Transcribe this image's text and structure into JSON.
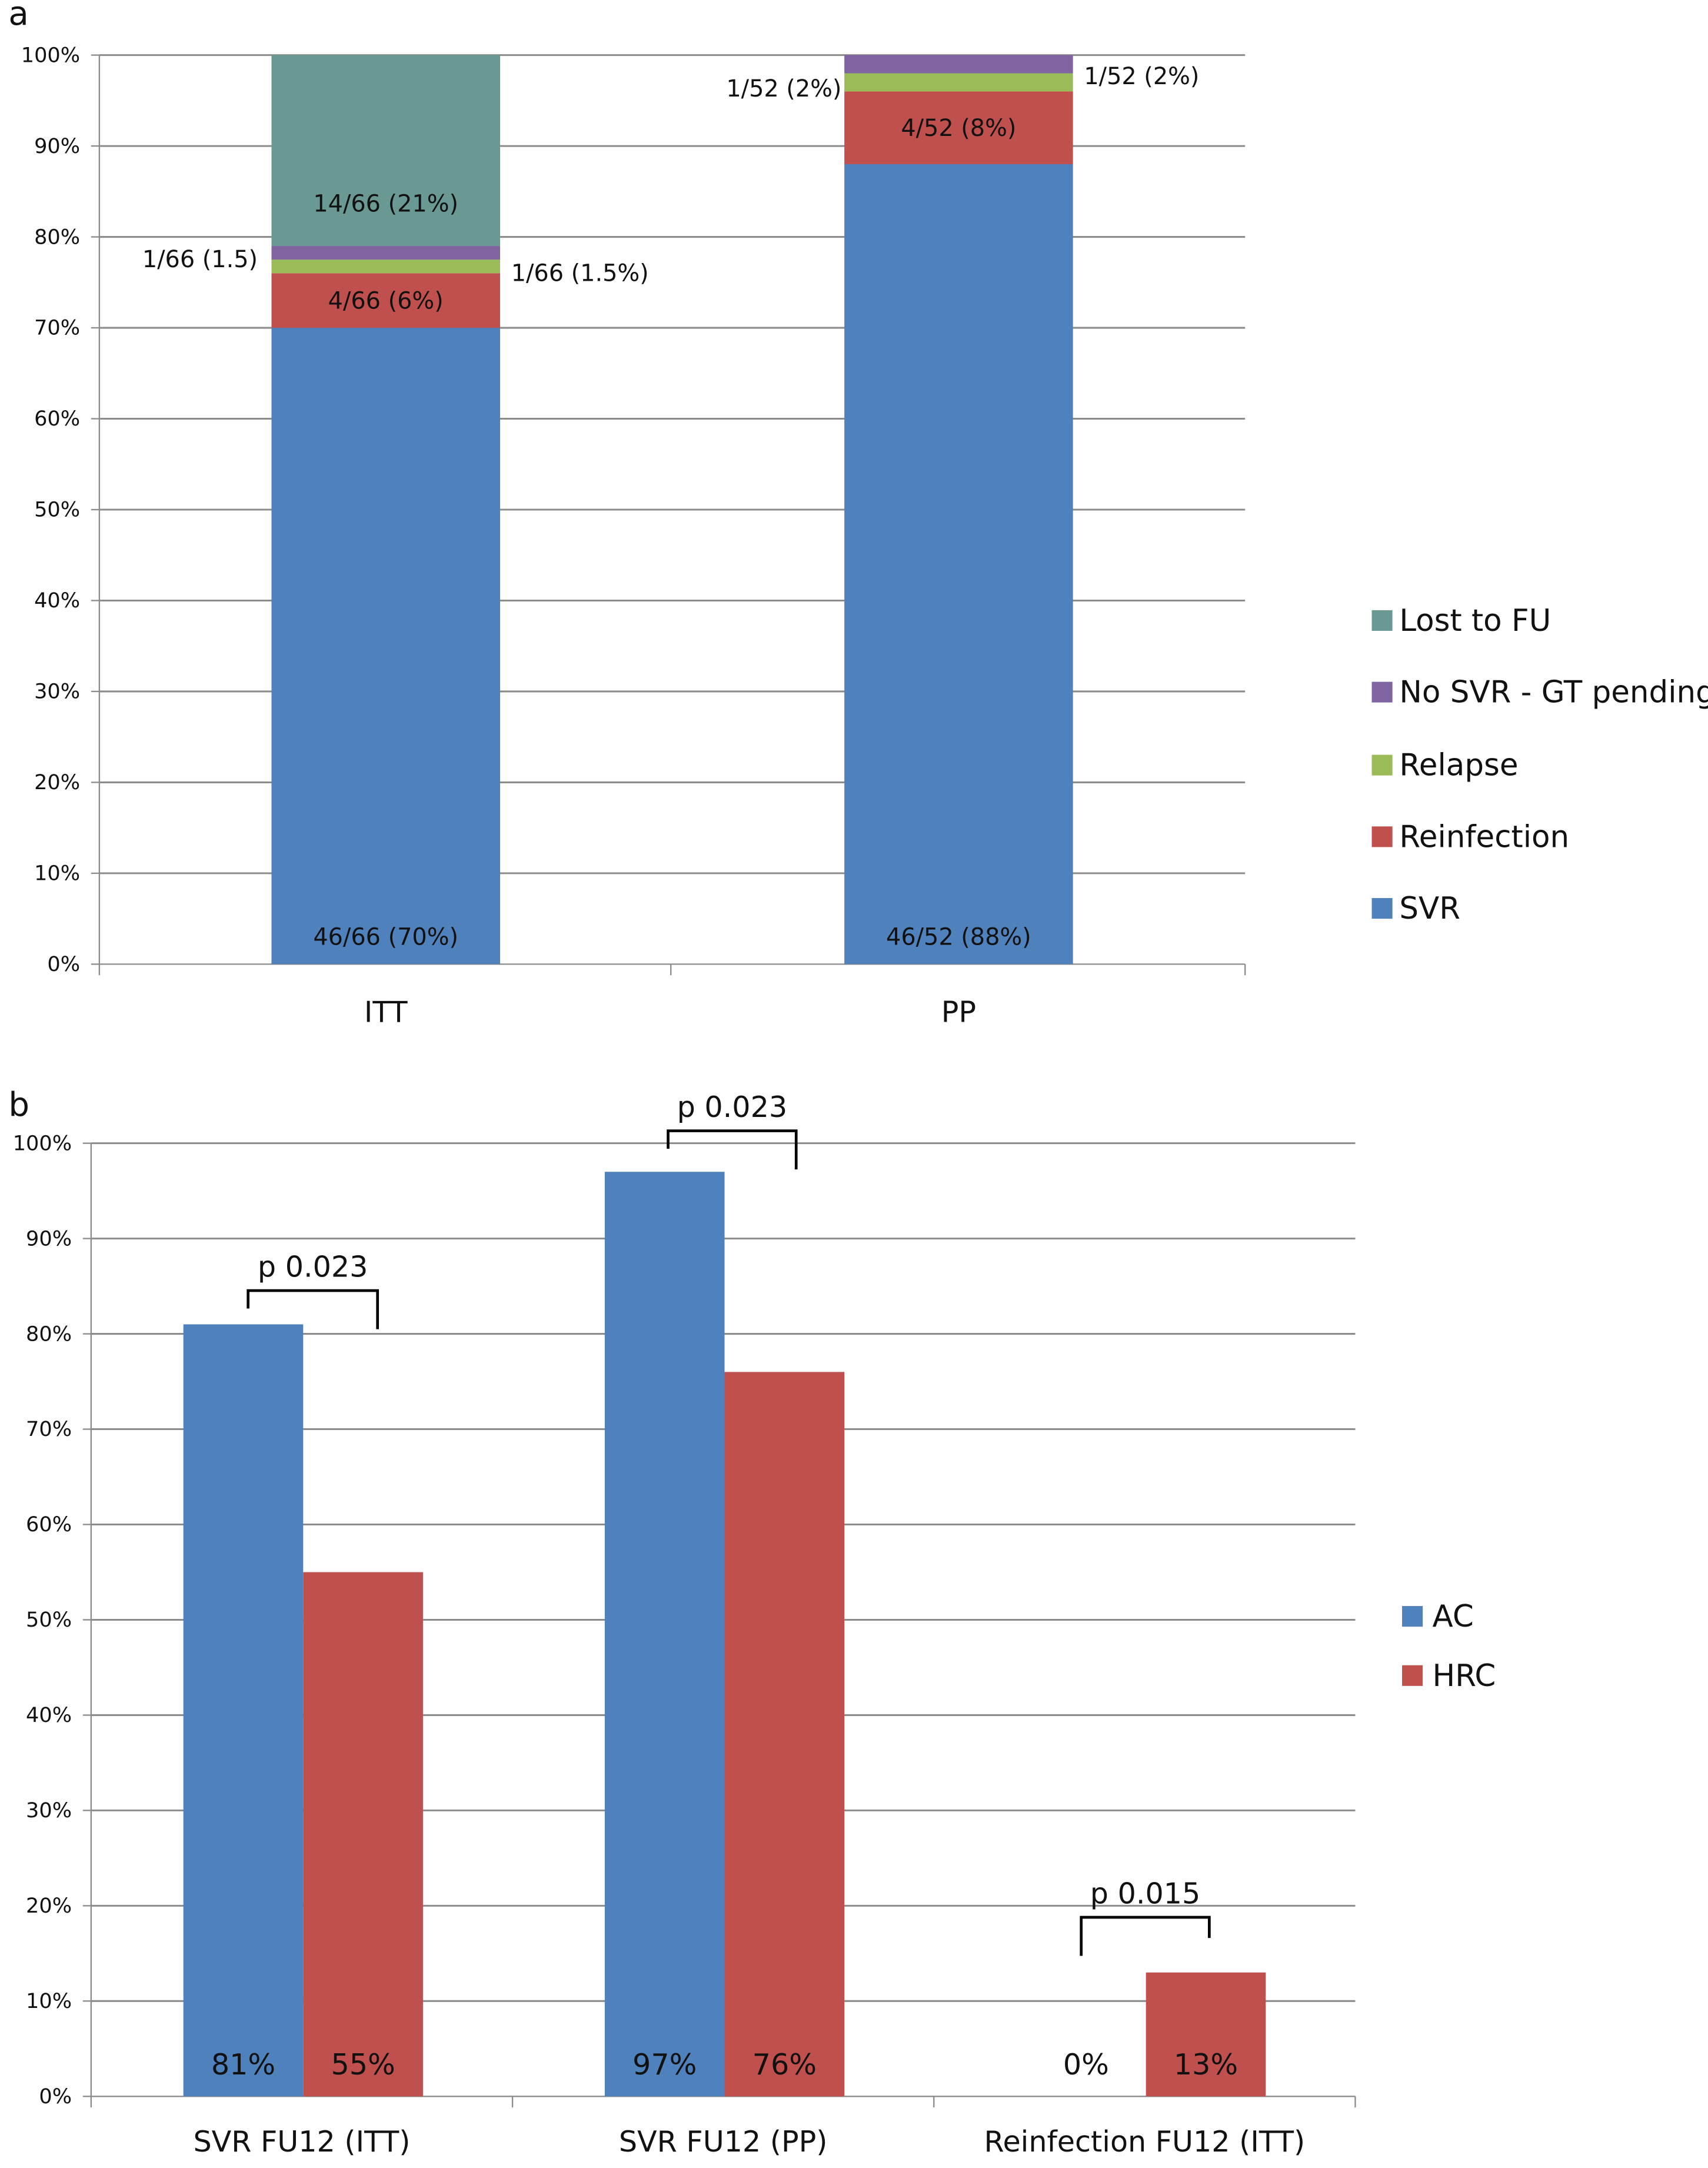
{
  "chart_data": [
    {
      "panel_label": "a",
      "type": "bar",
      "stacked": true,
      "categories": [
        "ITT",
        "PP"
      ],
      "ylim": [
        0,
        100
      ],
      "yticks": [
        "0%",
        "10%",
        "20%",
        "30%",
        "40%",
        "50%",
        "60%",
        "70%",
        "80%",
        "90%",
        "100%"
      ],
      "grid": true,
      "legend_position": "right",
      "series": [
        {
          "name": "SVR",
          "color": "#4f81bd",
          "values": [
            70,
            88
          ],
          "labels": [
            "46/66 (70%)",
            "46/52 (88%)"
          ]
        },
        {
          "name": "Reinfection",
          "color": "#c0504d",
          "values": [
            6,
            8
          ],
          "labels": [
            "4/66 (6%)",
            "4/52 (8%)"
          ]
        },
        {
          "name": "Relapse",
          "color": "#9bbb59",
          "values": [
            1.5,
            2
          ],
          "labels": [
            "1/66 (1.5%)",
            "1/52 (2%)"
          ]
        },
        {
          "name": "No SVR - GT pending",
          "color": "#8064a2",
          "values": [
            1.5,
            2
          ],
          "labels": [
            "1/66 (1.5)",
            "1/52 (2%)"
          ]
        },
        {
          "name": "Lost to FU",
          "color": "#6a9994",
          "values": [
            21,
            0
          ],
          "labels": [
            "14/66 (21%)",
            ""
          ]
        }
      ]
    },
    {
      "panel_label": "b",
      "type": "bar",
      "categories": [
        "SVR FU12 (ITT)",
        "SVR FU12 (PP)",
        "Reinfection FU12 (ITT)"
      ],
      "ylim": [
        0,
        100
      ],
      "yticks": [
        "0%",
        "10%",
        "20%",
        "30%",
        "40%",
        "50%",
        "60%",
        "70%",
        "80%",
        "90%",
        "100%"
      ],
      "grid": true,
      "legend_position": "right",
      "series": [
        {
          "name": "AC",
          "color": "#4f81bd",
          "values": [
            81,
            97,
            0
          ],
          "labels": [
            "81%",
            "97%",
            "0%"
          ]
        },
        {
          "name": "HRC",
          "color": "#c0504d",
          "values": [
            55,
            76,
            13
          ],
          "labels": [
            "55%",
            "76%",
            "13%"
          ]
        }
      ],
      "annotations": [
        "p 0.023",
        "p 0.023",
        "p 0.015"
      ]
    }
  ]
}
